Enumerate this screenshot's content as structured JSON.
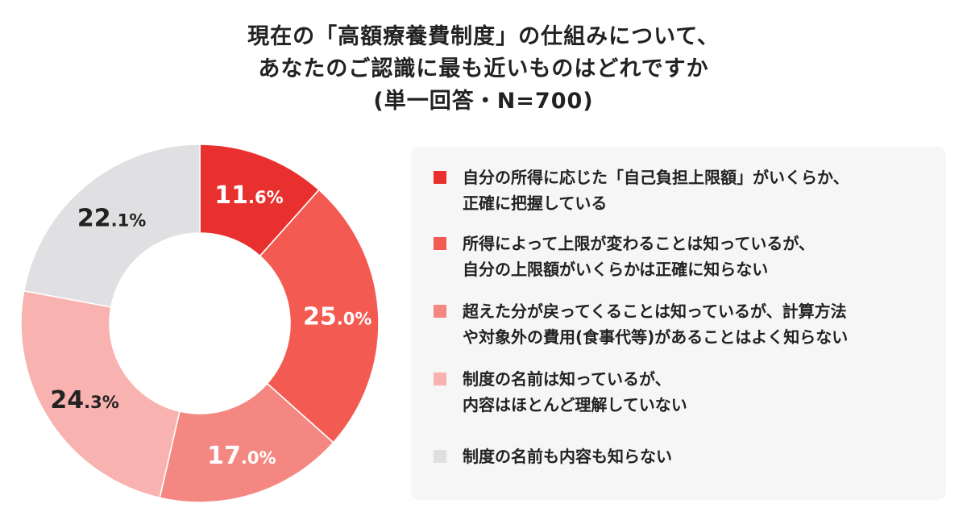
{
  "title": {
    "line1": "現在の「高額療養費制度」の仕組みについて、",
    "line2": "あなたのご認識に最も近いものはどれですか",
    "line3": "(単一回答・N=700)"
  },
  "chart_data": {
    "type": "pie",
    "style": "donut",
    "unit": "%",
    "slices": [
      {
        "label_lines": [
          "自分の所得に応じた「自己負担上限額」がいくらか、",
          "正確に把握している"
        ],
        "value": 11.6,
        "value_int": "11",
        "value_dec": ".6%",
        "color": "#e8312e",
        "label_color": "#ffffff"
      },
      {
        "label_lines": [
          "所得によって上限が変わることは知っているが、",
          "自分の上限額がいくらかは正確に知らない"
        ],
        "value": 25.0,
        "value_int": "25",
        "value_dec": ".0%",
        "color": "#f35b52",
        "label_color": "#ffffff"
      },
      {
        "label_lines": [
          "超えた分が戻ってくることは知っているが、計算方法",
          "や対象外の費用(食事代等)があることはよく知らない"
        ],
        "value": 17.0,
        "value_int": "17",
        "value_dec": ".0%",
        "color": "#f48781",
        "label_color": "#ffffff"
      },
      {
        "label_lines": [
          "制度の名前は知っているが、",
          "内容はほとんど理解していない"
        ],
        "value": 24.3,
        "value_int": "24",
        "value_dec": ".3%",
        "color": "#f8b2b0",
        "label_color": "#222222"
      },
      {
        "label_lines": [
          "制度の名前も内容も知らない"
        ],
        "value": 22.1,
        "value_int": "22",
        "value_dec": ".1%",
        "color": "#e0dfe1",
        "label_color": "#222222"
      }
    ],
    "legend_position": "right"
  }
}
